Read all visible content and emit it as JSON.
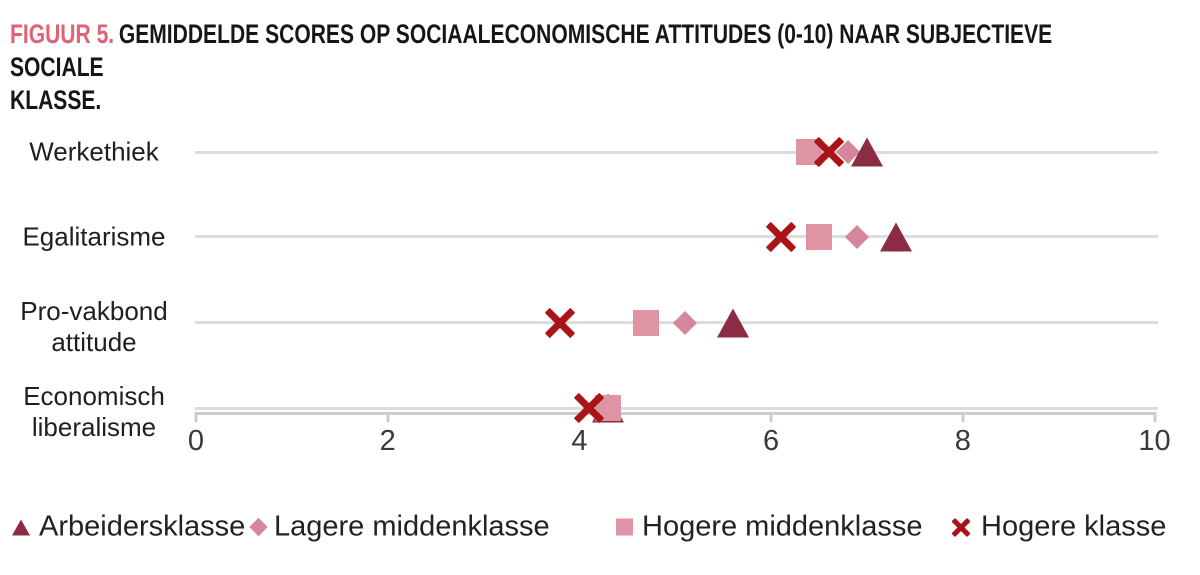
{
  "title": {
    "prefix": "FIGUUR 5.",
    "line1": "GEMIDDELDE SCORES OP SOCIAALECONOMISCHE ATTITUDES (0-10) NAAR SUBJECTIEVE SOCIALE",
    "line2": "KLASSE."
  },
  "colors": {
    "accent_title": "#e06276",
    "arbeidersklasse": "#8c2c44",
    "lagere_middenklasse": "#d58799",
    "hogere_middenklasse": "#df94a3",
    "hogere_klasse": "#aa1317",
    "gridline": "#dcdcdc",
    "axis": "#cccccc"
  },
  "chart_data": {
    "type": "scatter",
    "orientation": "horizontal-dotplot",
    "categories": [
      "Werkethiek",
      "Egalitarisme",
      "Pro-vakbond attitude",
      "Economisch liberalisme"
    ],
    "series": [
      {
        "name": "Arbeidersklasse",
        "marker": "triangle",
        "color": "#8c2c44",
        "values": [
          7.0,
          7.3,
          5.6,
          4.3
        ]
      },
      {
        "name": "Lagere middenklasse",
        "marker": "diamond",
        "color": "#d58799",
        "values": [
          6.8,
          6.9,
          5.1,
          4.3
        ]
      },
      {
        "name": "Hogere middenklasse",
        "marker": "square",
        "color": "#df94a3",
        "values": [
          6.4,
          6.5,
          4.7,
          4.3
        ]
      },
      {
        "name": "Hogere klasse",
        "marker": "x",
        "color": "#aa1317",
        "values": [
          6.6,
          6.1,
          3.8,
          4.1
        ]
      }
    ],
    "xlim": [
      0,
      10
    ],
    "xticks": [
      "0",
      "2",
      "4",
      "6",
      "8",
      "10"
    ],
    "grid": "horizontal-category-lines",
    "legend_position": "bottom"
  }
}
